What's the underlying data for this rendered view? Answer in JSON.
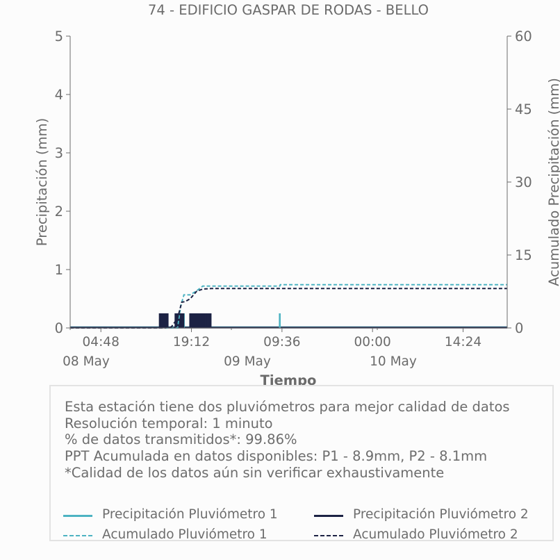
{
  "chart_data": {
    "type": "line",
    "title": "74 - EDIFICIO GASPAR DE RODAS - BELLO",
    "xlabel": "Tiempo",
    "ylabel_left": "Precipitación (mm)",
    "ylabel_right": "Acumulado Precipitación (mm)",
    "ylim_left": [
      0,
      5
    ],
    "ylim_right": [
      0,
      60
    ],
    "yticks_left": [
      "0",
      "1",
      "2",
      "3",
      "4",
      "5"
    ],
    "yticks_right": [
      "0",
      "15",
      "30",
      "45",
      "60"
    ],
    "xlim": [
      "2024-05-07T23:55",
      "2024-05-10T21:25"
    ],
    "xticks": [
      {
        "time": "2024-05-08T04:48",
        "label": "04:48",
        "sublabel": "08 May"
      },
      {
        "time": "2024-05-08T19:12",
        "label": "19:12",
        "sublabel": "09 May"
      },
      {
        "time": "2024-05-09T09:36",
        "label": "09:36",
        "sublabel": ""
      },
      {
        "time": "2024-05-10T00:00",
        "label": "00:00",
        "sublabel": "10 May"
      },
      {
        "time": "2024-05-10T14:24",
        "label": "14:24",
        "sublabel": ""
      }
    ],
    "grid": false,
    "series": [
      {
        "name": "Precipitación Pluviómetro 1",
        "axis": "left",
        "style": "solid",
        "color": "#4db3c2",
        "bars": [
          {
            "t": "2024-05-08T14:30",
            "v": 0.25
          },
          {
            "t": "2024-05-08T15:20",
            "v": 0.25
          },
          {
            "t": "2024-05-08T17:10",
            "v": 0.25
          },
          {
            "t": "2024-05-08T18:00",
            "v": 0.25
          },
          {
            "t": "2024-05-08T19:15",
            "v": 0.25
          },
          {
            "t": "2024-05-08T20:20",
            "v": 0.25
          },
          {
            "t": "2024-05-09T09:15",
            "v": 0.25
          }
        ]
      },
      {
        "name": "Precipitación Pluviómetro 2",
        "axis": "left",
        "style": "solid",
        "color": "#1c2244",
        "bars": [
          {
            "t": "2024-05-08T14:10",
            "v": 0.25
          },
          {
            "t": "2024-05-08T14:25",
            "v": 0.25
          },
          {
            "t": "2024-05-08T14:40",
            "v": 0.25
          },
          {
            "t": "2024-05-08T14:55",
            "v": 0.25
          },
          {
            "t": "2024-05-08T15:10",
            "v": 0.25
          },
          {
            "t": "2024-05-08T15:25",
            "v": 0.25
          },
          {
            "t": "2024-05-08T16:40",
            "v": 0.25
          },
          {
            "t": "2024-05-08T16:55",
            "v": 0.25
          },
          {
            "t": "2024-05-08T17:10",
            "v": 0.25
          },
          {
            "t": "2024-05-08T17:25",
            "v": 0.25
          },
          {
            "t": "2024-05-08T17:40",
            "v": 0.25
          },
          {
            "t": "2024-05-08T17:55",
            "v": 0.25
          },
          {
            "t": "2024-05-08T19:00",
            "v": 0.25
          },
          {
            "t": "2024-05-08T19:15",
            "v": 0.25
          },
          {
            "t": "2024-05-08T19:30",
            "v": 0.25
          },
          {
            "t": "2024-05-08T19:45",
            "v": 0.25
          },
          {
            "t": "2024-05-08T20:00",
            "v": 0.25
          },
          {
            "t": "2024-05-08T20:15",
            "v": 0.25
          },
          {
            "t": "2024-05-08T20:30",
            "v": 0.25
          },
          {
            "t": "2024-05-08T20:45",
            "v": 0.25
          },
          {
            "t": "2024-05-08T21:00",
            "v": 0.25
          },
          {
            "t": "2024-05-08T21:15",
            "v": 0.25
          },
          {
            "t": "2024-05-08T21:30",
            "v": 0.25
          },
          {
            "t": "2024-05-08T21:45",
            "v": 0.25
          },
          {
            "t": "2024-05-08T22:00",
            "v": 0.25
          },
          {
            "t": "2024-05-08T22:15",
            "v": 0.25
          }
        ]
      },
      {
        "name": "Acumulado Pluviómetro 1",
        "axis": "right",
        "style": "dashed",
        "color": "#4db3c2",
        "points": [
          {
            "t": "2024-05-07T23:55",
            "v": 0
          },
          {
            "t": "2024-05-08T17:00",
            "v": 0
          },
          {
            "t": "2024-05-08T17:30",
            "v": 4.5
          },
          {
            "t": "2024-05-08T18:00",
            "v": 6.8
          },
          {
            "t": "2024-05-08T19:00",
            "v": 6.8
          },
          {
            "t": "2024-05-08T20:00",
            "v": 7.6
          },
          {
            "t": "2024-05-08T21:00",
            "v": 8.6
          },
          {
            "t": "2024-05-09T09:15",
            "v": 8.6
          },
          {
            "t": "2024-05-09T09:20",
            "v": 8.9
          },
          {
            "t": "2024-05-10T21:25",
            "v": 8.9
          }
        ]
      },
      {
        "name": "Acumulado Pluviómetro 2",
        "axis": "right",
        "style": "dashed",
        "color": "#1c2244",
        "points": [
          {
            "t": "2024-05-07T23:55",
            "v": 0
          },
          {
            "t": "2024-05-08T15:00",
            "v": 0
          },
          {
            "t": "2024-05-08T16:00",
            "v": 0.2
          },
          {
            "t": "2024-05-08T17:00",
            "v": 2.0
          },
          {
            "t": "2024-05-08T17:40",
            "v": 5.3
          },
          {
            "t": "2024-05-08T18:10",
            "v": 5.4
          },
          {
            "t": "2024-05-08T19:00",
            "v": 6.0
          },
          {
            "t": "2024-05-08T20:00",
            "v": 7.5
          },
          {
            "t": "2024-05-08T21:00",
            "v": 8.0
          },
          {
            "t": "2024-05-08T22:20",
            "v": 8.1
          },
          {
            "t": "2024-05-10T21:25",
            "v": 8.1
          }
        ]
      }
    ]
  },
  "info": {
    "lines": [
      "Esta estación tiene dos pluviómetros para mejor calidad de datos",
      "Resolución temporal: 1 minuto",
      "% de datos transmitidos*: 99.86%",
      "PPT Acumulada en datos disponibles: P1 - 8.9mm, P2 - 8.1mm",
      "*Calidad de los datos aún sin verificar exhaustivamente"
    ]
  },
  "colors": {
    "axis": "#6b6b6b",
    "text": "#6b6b6b",
    "background": "#fcfcfc",
    "pluviometro1": "#4db3c2",
    "pluviometro2": "#1c2244"
  }
}
